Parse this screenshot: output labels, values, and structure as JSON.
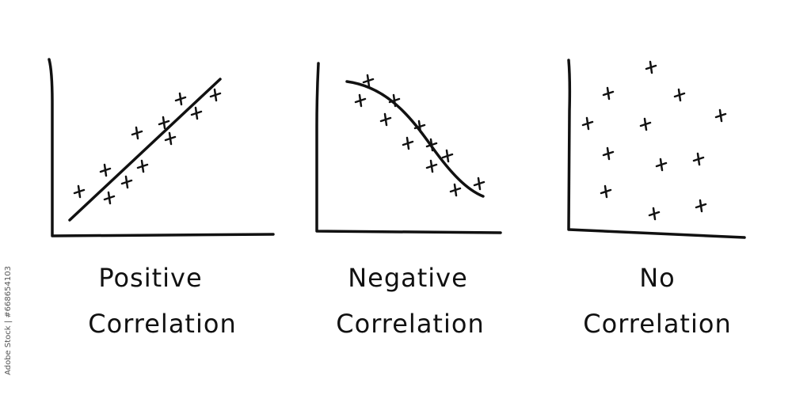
{
  "panels": [
    {
      "label_lines": [
        "Positive",
        "Correlation"
      ]
    },
    {
      "label_lines": [
        "Negative",
        "Correlation"
      ]
    },
    {
      "label_lines": [
        "No",
        "Correlation"
      ]
    }
  ],
  "watermark": "Adobe Stock | #668654103"
}
